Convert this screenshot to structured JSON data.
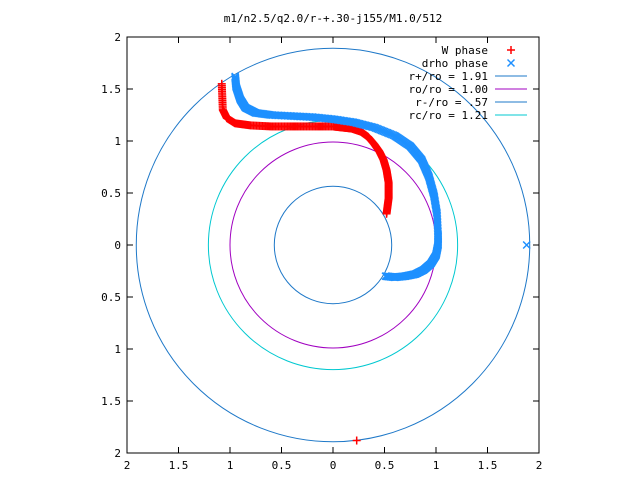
{
  "chart_data": {
    "type": "scatter",
    "title": "m1/n2.5/q2.0/r-+.30-j155/M1.0/512",
    "xlim": [
      -2,
      2
    ],
    "ylim": [
      -2,
      2
    ],
    "x_ticks": [
      -2,
      -1.5,
      -1,
      -0.5,
      0,
      0.5,
      1,
      1.5,
      2
    ],
    "y_ticks": [
      -2,
      -1.5,
      -1,
      -0.5,
      0,
      0.5,
      1,
      1.5,
      2
    ],
    "x_tick_labels": [
      "2",
      "1.5",
      "1",
      "0.5",
      "0",
      "0.5",
      "1",
      "1.5",
      "2"
    ],
    "y_tick_labels": [
      "2",
      "1.5",
      "1",
      "0.5",
      "0",
      "0.5",
      "1",
      "1.5",
      "2"
    ],
    "grid": false,
    "legend_position": "top-right",
    "series": [
      {
        "name": "W phase",
        "kind": "points",
        "marker": "+",
        "color": "#ff0000",
        "x": [
          0.52,
          0.54,
          0.54,
          0.52,
          0.49,
          0.45,
          0.4,
          0.34,
          0.27,
          0.18,
          0.09,
          0.0,
          -0.2,
          -0.4,
          -0.6,
          -0.8,
          -0.95,
          -1.03,
          -1.07,
          -1.08,
          0.23
        ],
        "y": [
          0.3,
          0.45,
          0.6,
          0.72,
          0.82,
          0.9,
          0.97,
          1.04,
          1.09,
          1.12,
          1.13,
          1.14,
          1.14,
          1.14,
          1.14,
          1.15,
          1.17,
          1.22,
          1.3,
          1.55,
          -1.88
        ]
      },
      {
        "name": "drho phase",
        "kind": "points",
        "marker": "x",
        "color": "#1e90ff",
        "x": [
          -0.95,
          -0.94,
          -0.9,
          -0.85,
          -0.75,
          -0.6,
          -0.4,
          -0.2,
          0.0,
          0.2,
          0.4,
          0.6,
          0.75,
          0.86,
          0.93,
          0.98,
          1.01,
          1.02,
          1.02,
          1.0,
          0.95,
          0.88,
          0.8,
          0.7,
          0.6,
          0.51,
          1.88
        ],
        "y": [
          1.62,
          1.52,
          1.4,
          1.32,
          1.27,
          1.25,
          1.24,
          1.23,
          1.21,
          1.18,
          1.13,
          1.05,
          0.95,
          0.82,
          0.66,
          0.48,
          0.3,
          0.1,
          0.0,
          -0.1,
          -0.18,
          -0.24,
          -0.28,
          -0.3,
          -0.31,
          -0.3,
          0.0
        ]
      },
      {
        "name": "r+/ro = 1.91",
        "kind": "circle",
        "radius": 1.91,
        "color": "#1e78c8"
      },
      {
        "name": "ro/ro = 1.00",
        "kind": "circle",
        "radius": 1.0,
        "color": "#a000c0"
      },
      {
        "name": "r-/ro = .57",
        "kind": "circle",
        "radius": 0.57,
        "color": "#1e78c8"
      },
      {
        "name": "rc/ro = 1.21",
        "kind": "circle",
        "radius": 1.21,
        "color": "#00c8d0"
      }
    ]
  }
}
